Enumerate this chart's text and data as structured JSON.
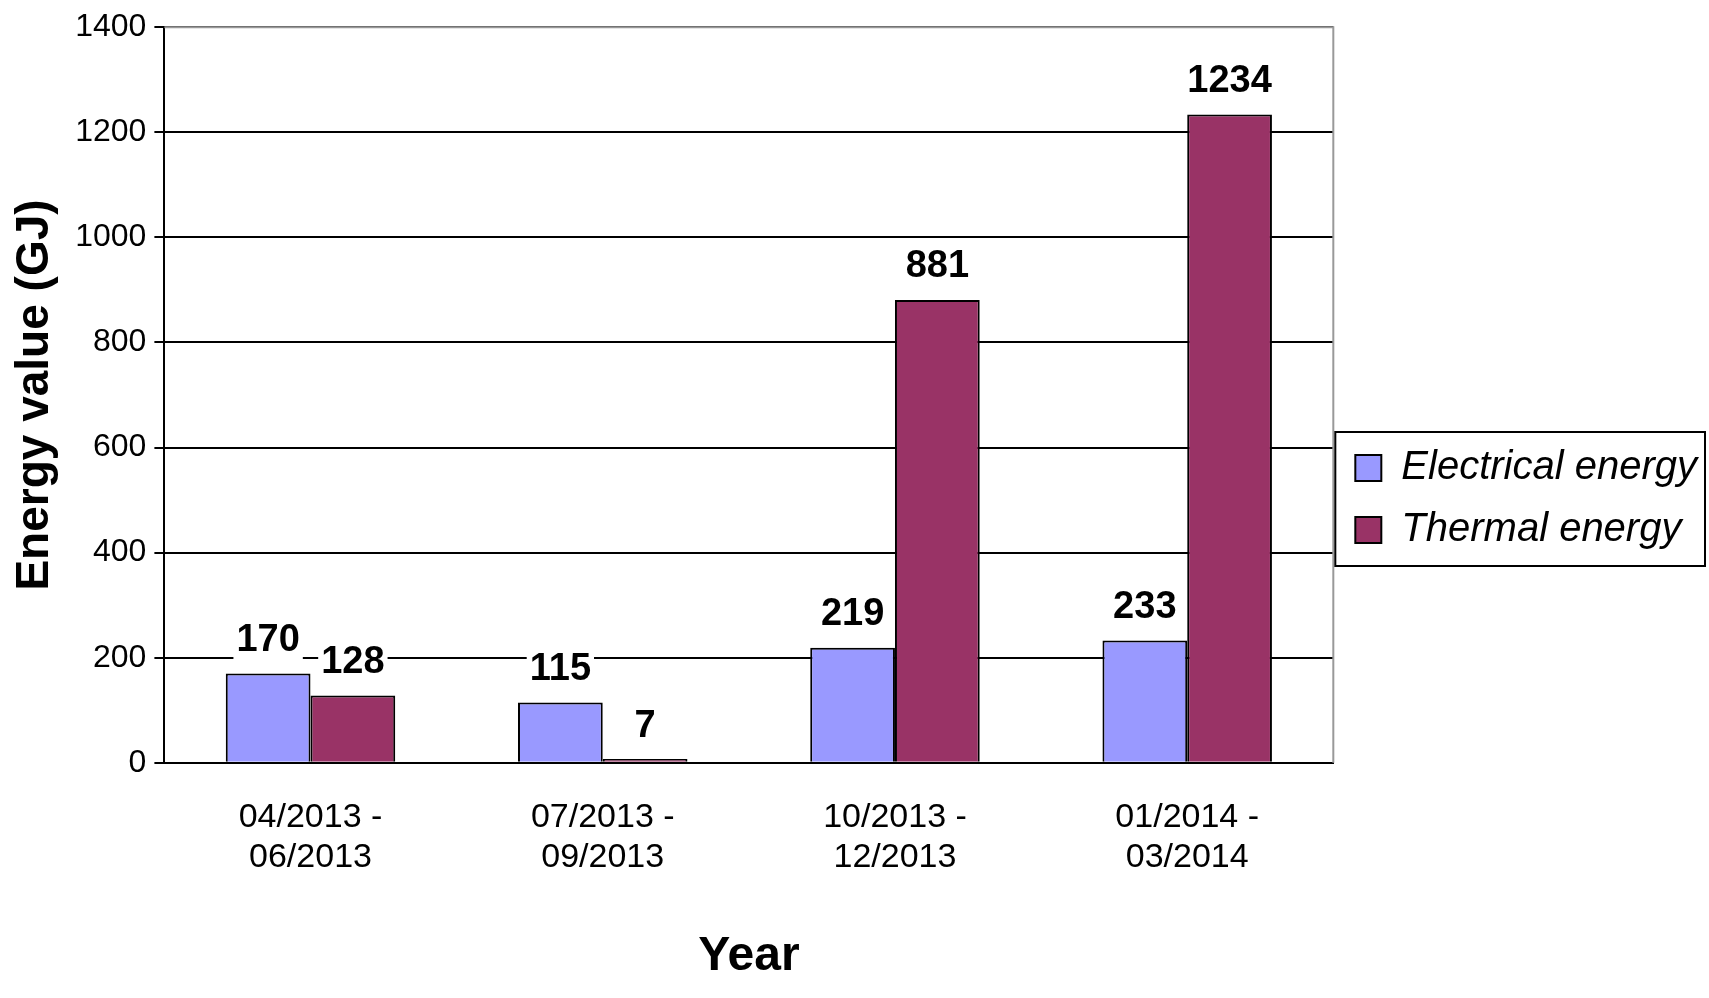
{
  "chart_data": {
    "type": "bar",
    "xlabel": "Year",
    "ylabel": "Energy value (GJ)",
    "categories": [
      "04/2013 - 06/2013",
      "07/2013 - 09/2013",
      "10/2013 - 12/2013",
      "01/2014 - 03/2014"
    ],
    "series": [
      {
        "name": "Electrical energy",
        "color": "#9999ff",
        "values": [
          170,
          115,
          219,
          233
        ]
      },
      {
        "name": "Thermal energy",
        "color": "#993366",
        "values": [
          128,
          7,
          881,
          1234
        ]
      }
    ],
    "ylim": [
      0,
      1400
    ],
    "yticks": [
      0,
      200,
      400,
      600,
      800,
      1000,
      1200,
      1400
    ],
    "grid": "y",
    "legend": "right",
    "data_labels": true
  }
}
